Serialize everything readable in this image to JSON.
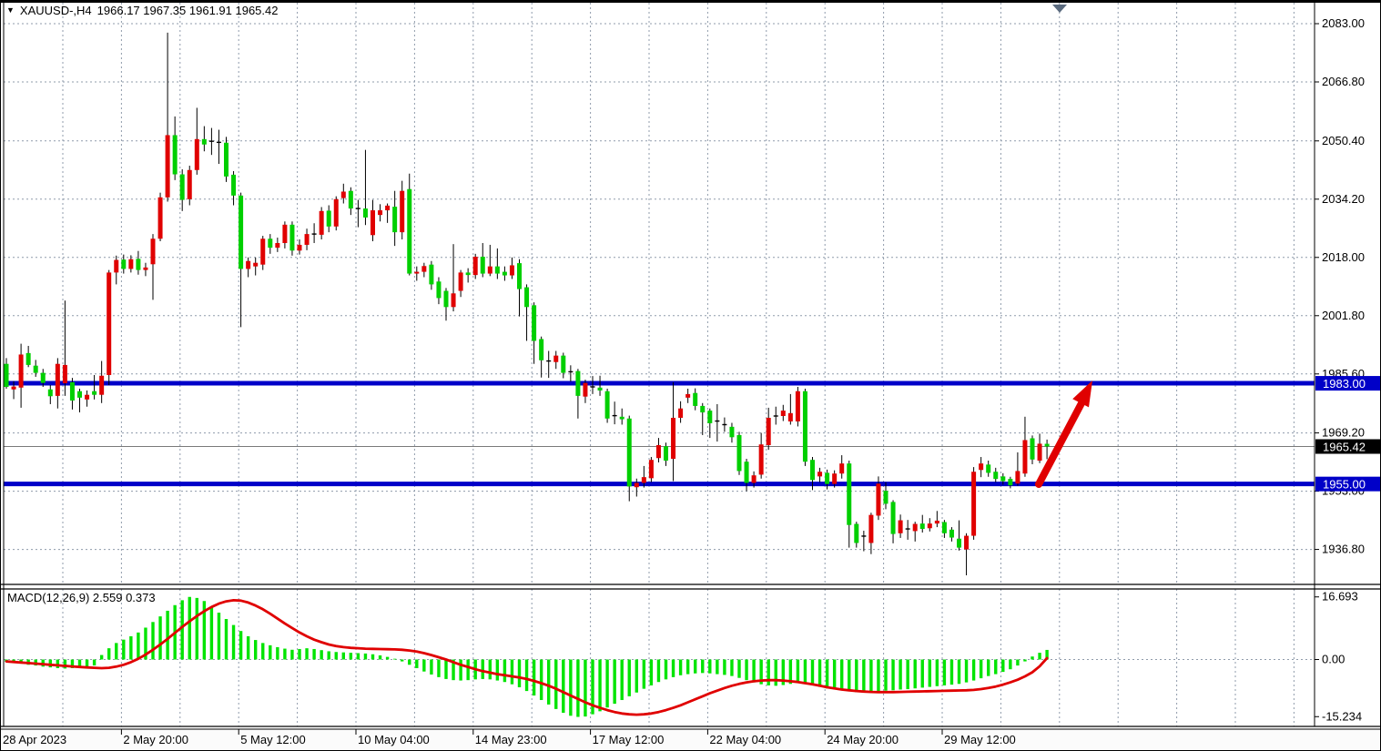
{
  "header": {
    "symbol_timeframe": "XAUUSD-,H4",
    "ohlc_text": "1966.17 1967.35 1961.91 1965.42"
  },
  "colors": {
    "up_candle": "#E00000",
    "down_candle": "#00CF00",
    "wick": "#000000",
    "macd_histogram": "#00E400",
    "macd_signal": "#E00000",
    "level_line": "#0000C8",
    "current_price_line": "#7A7A7A",
    "grid": "#8F9BAB",
    "arrow": "#E00000",
    "badge_level_bg": "#0000C8",
    "badge_current_bg": "#000000",
    "badge_text": "#FFFFFF",
    "axis_text": "#000000",
    "background": "#FFFFFF"
  },
  "chart_data": {
    "type": "candlestick",
    "title": "XAUUSD-,H4 1966.17 1967.35 1961.91 1965.42",
    "symbol": "XAUUSD-",
    "timeframe": "H4",
    "current_bar": {
      "open": 1966.17,
      "high": 1967.35,
      "low": 1961.91,
      "close": 1965.42
    },
    "legend_note": "red body = bullish, green body = bearish (inverted template)",
    "price_panel": {
      "ylim": [
        1927.1,
        2088.8
      ],
      "y_axis_labels": [
        "2083.00",
        "2066.80",
        "2050.40",
        "2034.20",
        "2018.00",
        "2001.80",
        "1985.60",
        "1969.20",
        "1953.00",
        "1936.80"
      ],
      "levels": {
        "resistance": {
          "price": 1983.0,
          "label": "1983.00"
        },
        "support": {
          "price": 1955.0,
          "label": "1955.00"
        },
        "current": {
          "price": 1965.42,
          "label": "1965.42"
        }
      },
      "annotations": [
        {
          "type": "arrow-up",
          "from": {
            "x_index": 141,
            "price": 1955.0
          },
          "to": {
            "x_index": 148,
            "price": 1983.0
          }
        }
      ],
      "candles": [
        [
          1988.4,
          1990.0,
          1981.5,
          1982.0
        ],
        [
          1981.3,
          1983.6,
          1978.6,
          1982.1
        ],
        [
          1981.8,
          1994.0,
          1976.2,
          1991.0
        ],
        [
          1991.4,
          1993.4,
          1987.5,
          1988.1
        ],
        [
          1987.9,
          1989.5,
          1984.8,
          1985.9
        ],
        [
          1985.9,
          1987.0,
          1982.0,
          1983.1
        ],
        [
          1981.3,
          1982.5,
          1977.2,
          1979.4
        ],
        [
          1979.5,
          1990.0,
          1976.0,
          1988.4
        ],
        [
          1983.0,
          2006.0,
          1979.5,
          1988.1
        ],
        [
          1983.3,
          1984.5,
          1975.7,
          1978.2
        ],
        [
          1980.8,
          1981.5,
          1974.9,
          1979.0
        ],
        [
          1978.5,
          1981.0,
          1976.5,
          1979.8
        ],
        [
          1980.8,
          1985.3,
          1978.5,
          1979.8
        ],
        [
          1979.8,
          1989.2,
          1977.5,
          1985.1
        ],
        [
          1985.3,
          2014.5,
          1982.5,
          2013.8
        ],
        [
          2013.8,
          2018.5,
          2010.5,
          2017.3
        ],
        [
          2017.4,
          2018.8,
          2013.5,
          2014.8
        ],
        [
          2014.8,
          2018.6,
          2013.8,
          2017.5
        ],
        [
          2017.6,
          2019.8,
          2013.2,
          2014.5
        ],
        [
          2014.5,
          2016.5,
          2012.8,
          2015.2
        ],
        [
          2016.1,
          2024.5,
          2006.2,
          2023.2
        ],
        [
          2023.2,
          2036.0,
          2022.5,
          2034.7
        ],
        [
          2034.7,
          2080.5,
          2033.5,
          2052.0
        ],
        [
          2052.0,
          2057.2,
          2039.5,
          2041.1
        ],
        [
          2041.1,
          2042.5,
          2030.9,
          2034.0
        ],
        [
          2034.2,
          2043.5,
          2032.5,
          2042.3
        ],
        [
          2042.3,
          2059.6,
          2041.0,
          2050.9
        ],
        [
          2050.9,
          2054.5,
          2047.5,
          2049.4
        ],
        [
          2050.3,
          2054.0,
          2046.5,
          2050.1
        ],
        [
          2050.0,
          2053.5,
          2044.0,
          2049.9
        ],
        [
          2049.9,
          2051.5,
          2039.0,
          2040.5
        ],
        [
          2041.0,
          2042.0,
          2032.5,
          2035.2
        ],
        [
          2035.2,
          2036.0,
          1998.6,
          2014.8
        ],
        [
          2014.8,
          2018.0,
          2012.5,
          2017.0
        ],
        [
          2015.5,
          2018.0,
          2013.0,
          2016.5
        ],
        [
          2016.0,
          2024.0,
          2014.5,
          2023.2
        ],
        [
          2023.2,
          2024.5,
          2019.0,
          2020.7
        ],
        [
          2020.7,
          2023.5,
          2019.5,
          2022.0
        ],
        [
          2022.0,
          2028.0,
          2020.5,
          2027.1
        ],
        [
          2027.1,
          2028.0,
          2018.5,
          2019.9
        ],
        [
          2019.9,
          2023.0,
          2018.8,
          2021.5
        ],
        [
          2021.5,
          2026.0,
          2020.0,
          2024.5
        ],
        [
          2024.5,
          2027.5,
          2022.0,
          2024.3
        ],
        [
          2024.3,
          2032.0,
          2023.0,
          2030.9
        ],
        [
          2031.0,
          2032.5,
          2025.0,
          2026.6
        ],
        [
          2026.6,
          2035.0,
          2025.5,
          2034.2
        ],
        [
          2034.5,
          2038.5,
          2033.0,
          2036.3
        ],
        [
          2036.5,
          2037.5,
          2029.8,
          2031.6
        ],
        [
          2031.6,
          2034.0,
          2026.4,
          2031.2
        ],
        [
          2031.6,
          2047.9,
          2027.0,
          2029.1
        ],
        [
          2024.2,
          2034.0,
          2022.5,
          2031.1
        ],
        [
          2029.8,
          2032.8,
          2028.0,
          2031.1
        ],
        [
          2031.1,
          2033.0,
          2027.6,
          2032.4
        ],
        [
          2032.1,
          2036.5,
          2021.2,
          2025.0
        ],
        [
          2025.0,
          2039.3,
          2023.0,
          2036.5
        ],
        [
          2037.0,
          2041.3,
          2013.0,
          2013.5
        ],
        [
          2013.5,
          2015.5,
          2011.5,
          2014.0
        ],
        [
          2014.0,
          2016.5,
          2012.5,
          2015.6
        ],
        [
          2016.0,
          2017.0,
          2009.0,
          2010.5
        ],
        [
          2011.3,
          2012.5,
          2005.0,
          2006.7
        ],
        [
          2008.7,
          2009.5,
          2000.4,
          2004.2
        ],
        [
          2004.2,
          2021.7,
          2003.0,
          2008.0
        ],
        [
          2008.7,
          2014.5,
          2007.0,
          2013.8
        ],
        [
          2013.8,
          2015.0,
          2011.0,
          2013.1
        ],
        [
          2013.1,
          2019.0,
          2012.0,
          2018.2
        ],
        [
          2018.2,
          2022.0,
          2012.5,
          2013.5
        ],
        [
          2013.5,
          2021.5,
          2012.8,
          2015.5
        ],
        [
          2015.5,
          2020.5,
          2012.0,
          2013.5
        ],
        [
          2014.0,
          2015.5,
          2011.5,
          2013.0
        ],
        [
          2013.0,
          2018.0,
          2012.0,
          2015.8
        ],
        [
          2016.4,
          2017.5,
          2001.6,
          2009.2
        ],
        [
          2009.7,
          2010.5,
          1994.8,
          2004.2
        ],
        [
          2004.7,
          2005.5,
          1988.4,
          1994.8
        ],
        [
          1995.3,
          1996.0,
          1984.6,
          1989.4
        ],
        [
          1989.2,
          1992.0,
          1984.5,
          1988.9
        ],
        [
          1988.9,
          1992.0,
          1987.0,
          1990.7
        ],
        [
          1990.7,
          1991.5,
          1984.4,
          1985.9
        ],
        [
          1986.2,
          1988.0,
          1983.5,
          1985.9
        ],
        [
          1986.4,
          1987.0,
          1973.2,
          1979.5
        ],
        [
          1979.3,
          1984.0,
          1977.5,
          1983.1
        ],
        [
          1982.0,
          1985.0,
          1980.0,
          1981.8
        ],
        [
          1981.8,
          1985.1,
          1979.5,
          1981.0
        ],
        [
          1980.8,
          1981.5,
          1972.0,
          1973.2
        ],
        [
          1974.0,
          1977.9,
          1971.6,
          1973.7
        ],
        [
          1973.7,
          1976.0,
          1971.5,
          1973.0
        ],
        [
          1973.2,
          1974.0,
          1950.2,
          1954.3
        ],
        [
          1954.1,
          1956.5,
          1951.5,
          1955.3
        ],
        [
          1955.3,
          1960.0,
          1954.0,
          1956.9
        ],
        [
          1956.6,
          1962.5,
          1955.5,
          1961.7
        ],
        [
          1962.2,
          1967.8,
          1961.0,
          1965.8
        ],
        [
          1965.5,
          1966.5,
          1960.0,
          1961.5
        ],
        [
          1962.0,
          1983.3,
          1955.8,
          1973.4
        ],
        [
          1973.4,
          1978.0,
          1972.0,
          1976.0
        ],
        [
          1979.0,
          1981.5,
          1977.5,
          1980.0
        ],
        [
          1980.3,
          1981.6,
          1975.5,
          1976.7
        ],
        [
          1976.7,
          1977.5,
          1968.6,
          1974.9
        ],
        [
          1975.4,
          1976.0,
          1967.8,
          1971.9
        ],
        [
          1972.5,
          1977.2,
          1966.8,
          1972.2
        ],
        [
          1971.5,
          1973.5,
          1969.5,
          1971.3
        ],
        [
          1970.9,
          1972.0,
          1966.5,
          1968.0
        ],
        [
          1968.6,
          1969.5,
          1957.5,
          1958.6
        ],
        [
          1961.2,
          1962.0,
          1953.0,
          1955.3
        ],
        [
          1955.3,
          1958.5,
          1954.0,
          1957.4
        ],
        [
          1957.6,
          1969.2,
          1956.5,
          1966.0
        ],
        [
          1965.8,
          1976.2,
          1964.5,
          1973.4
        ],
        [
          1973.9,
          1976.5,
          1971.5,
          1973.7
        ],
        [
          1973.9,
          1977.0,
          1972.5,
          1975.4
        ],
        [
          1972.4,
          1980.0,
          1971.5,
          1974.7
        ],
        [
          1972.4,
          1982.0,
          1971.0,
          1980.8
        ],
        [
          1980.8,
          1981.5,
          1960.0,
          1961.2
        ],
        [
          1961.7,
          1962.5,
          1953.3,
          1956.1
        ],
        [
          1957.1,
          1959.5,
          1955.5,
          1958.4
        ],
        [
          1958.1,
          1959.0,
          1953.5,
          1955.0
        ],
        [
          1955.0,
          1958.8,
          1954.0,
          1957.9
        ],
        [
          1957.9,
          1963.0,
          1956.5,
          1960.7
        ],
        [
          1960.7,
          1961.5,
          1937.3,
          1943.6
        ],
        [
          1943.9,
          1944.5,
          1937.3,
          1938.6
        ],
        [
          1940.5,
          1942.0,
          1936.3,
          1940.2
        ],
        [
          1938.6,
          1947.0,
          1935.5,
          1946.4
        ],
        [
          1946.2,
          1957.1,
          1945.0,
          1955.1
        ],
        [
          1953.1,
          1955.5,
          1948.0,
          1949.5
        ],
        [
          1950.0,
          1950.5,
          1938.5,
          1941.1
        ],
        [
          1941.3,
          1946.5,
          1940.0,
          1944.9
        ],
        [
          1942.5,
          1945.0,
          1939.5,
          1942.2
        ],
        [
          1941.9,
          1944.5,
          1939.0,
          1943.9
        ],
        [
          1944.0,
          1946.4,
          1941.5,
          1942.5
        ],
        [
          1942.7,
          1945.5,
          1941.8,
          1944.0
        ],
        [
          1944.0,
          1947.5,
          1943.0,
          1944.8
        ],
        [
          1944.4,
          1945.0,
          1940.0,
          1941.3
        ],
        [
          1942.3,
          1943.0,
          1939.0,
          1940.1
        ],
        [
          1939.8,
          1944.9,
          1936.5,
          1937.3
        ],
        [
          1936.8,
          1941.3,
          1929.6,
          1940.6
        ],
        [
          1940.6,
          1959.7,
          1939.5,
          1958.4
        ],
        [
          1958.9,
          1962.5,
          1956.9,
          1960.7
        ],
        [
          1960.4,
          1961.5,
          1957.0,
          1958.1
        ],
        [
          1958.4,
          1959.5,
          1955.5,
          1956.4
        ],
        [
          1957.1,
          1958.0,
          1954.8,
          1955.8
        ],
        [
          1956.4,
          1957.0,
          1953.8,
          1954.6
        ],
        [
          1955.1,
          1963.8,
          1954.5,
          1958.6
        ],
        [
          1957.9,
          1973.7,
          1957.0,
          1967.2
        ],
        [
          1967.7,
          1968.5,
          1960.5,
          1961.8
        ],
        [
          1961.5,
          1969.0,
          1960.8,
          1966.2
        ],
        [
          1966.17,
          1967.35,
          1961.91,
          1965.42
        ]
      ]
    },
    "macd_panel": {
      "label": "MACD(12,26,9) 2.559 0.373",
      "params": "12,26,9",
      "macd_value": 2.559,
      "signal_value": 0.373,
      "ylim": [
        -17.8,
        18.8
      ],
      "y_axis_labels": [
        "16.693",
        "0.00",
        "-15.234"
      ],
      "histogram": [
        -0.6,
        -0.9,
        -1.1,
        -1.4,
        -1.6,
        -1.9,
        -2.1,
        -2.3,
        -2.4,
        -2.3,
        -2.1,
        -1.9,
        -1.6,
        1.2,
        3.0,
        4.4,
        5.3,
        6.2,
        7.2,
        8.5,
        10.0,
        11.5,
        13.0,
        14.5,
        15.8,
        16.7,
        16.4,
        15.6,
        14.2,
        12.5,
        10.8,
        9.2,
        7.6,
        6.2,
        5.2,
        4.4,
        3.8,
        3.3,
        2.9,
        2.6,
        2.8,
        3.0,
        2.8,
        2.5,
        2.2,
        2.0,
        1.9,
        1.8,
        1.7,
        1.6,
        1.4,
        1.1,
        0.7,
        0.2,
        -0.5,
        -1.4,
        -2.3,
        -3.2,
        -4.0,
        -4.7,
        -5.2,
        -5.5,
        -5.6,
        -5.5,
        -5.3,
        -5.2,
        -5.3,
        -5.6,
        -6.0,
        -6.6,
        -7.4,
        -8.4,
        -9.6,
        -10.8,
        -12.0,
        -13.2,
        -14.2,
        -15.0,
        -15.3,
        -15.2,
        -14.6,
        -13.8,
        -12.8,
        -11.8,
        -10.8,
        -9.8,
        -8.8,
        -7.8,
        -6.9,
        -6.0,
        -5.3,
        -4.7,
        -4.2,
        -3.9,
        -3.7,
        -3.6,
        -3.7,
        -3.9,
        -4.1,
        -4.4,
        -4.9,
        -5.5,
        -6.1,
        -6.6,
        -6.9,
        -7.0,
        -6.8,
        -6.5,
        -6.3,
        -6.4,
        -6.8,
        -7.3,
        -7.7,
        -8.0,
        -8.2,
        -8.5,
        -8.7,
        -8.8,
        -8.7,
        -8.5,
        -8.3,
        -8.2,
        -8.0,
        -7.9,
        -7.7,
        -7.5,
        -7.3,
        -7.1,
        -6.9,
        -6.7,
        -6.5,
        -6.1,
        -5.6,
        -5.0,
        -4.4,
        -3.9,
        -3.3,
        -2.6,
        -1.6,
        -0.5,
        0.8,
        1.8,
        2.56
      ],
      "signal": [
        -0.5,
        -0.65,
        -0.8,
        -0.95,
        -1.1,
        -1.25,
        -1.4,
        -1.55,
        -1.7,
        -1.85,
        -2.0,
        -2.1,
        -2.2,
        -2.3,
        -2.2,
        -1.9,
        -1.4,
        -0.7,
        0.2,
        1.3,
        2.6,
        4.0,
        5.5,
        7.1,
        8.7,
        10.2,
        11.6,
        12.9,
        14.0,
        14.9,
        15.5,
        15.8,
        15.7,
        15.2,
        14.4,
        13.4,
        12.2,
        10.9,
        9.6,
        8.4,
        7.2,
        6.2,
        5.3,
        4.6,
        4.0,
        3.6,
        3.3,
        3.1,
        3.0,
        2.9,
        2.85,
        2.8,
        2.75,
        2.7,
        2.6,
        2.4,
        2.1,
        1.7,
        1.2,
        0.6,
        0.0,
        -0.7,
        -1.4,
        -2.0,
        -2.6,
        -3.1,
        -3.5,
        -3.9,
        -4.2,
        -4.5,
        -4.8,
        -5.2,
        -5.7,
        -6.3,
        -7.0,
        -7.8,
        -8.7,
        -9.6,
        -10.5,
        -11.4,
        -12.2,
        -12.9,
        -13.5,
        -14.0,
        -14.4,
        -14.6,
        -14.7,
        -14.6,
        -14.4,
        -14.0,
        -13.5,
        -12.9,
        -12.2,
        -11.4,
        -10.6,
        -9.8,
        -9.0,
        -8.3,
        -7.6,
        -7.0,
        -6.5,
        -6.1,
        -5.8,
        -5.6,
        -5.5,
        -5.5,
        -5.6,
        -5.8,
        -6.0,
        -6.3,
        -6.6,
        -7.0,
        -7.4,
        -7.7,
        -8.0,
        -8.2,
        -8.4,
        -8.55,
        -8.65,
        -8.7,
        -8.7,
        -8.7,
        -8.65,
        -8.6,
        -8.55,
        -8.5,
        -8.45,
        -8.4,
        -8.35,
        -8.3,
        -8.25,
        -8.2,
        -8.1,
        -7.9,
        -7.6,
        -7.2,
        -6.7,
        -6.1,
        -5.4,
        -4.5,
        -3.4,
        -1.8,
        0.37
      ]
    },
    "x_axis": {
      "labels": [
        "28 Apr 2023",
        "2 May 20:00",
        "5 May 12:00",
        "10 May 04:00",
        "14 May 23:00",
        "17 May 12:00",
        "22 May 04:00",
        "24 May 20:00",
        "29 May 12:00"
      ]
    }
  }
}
